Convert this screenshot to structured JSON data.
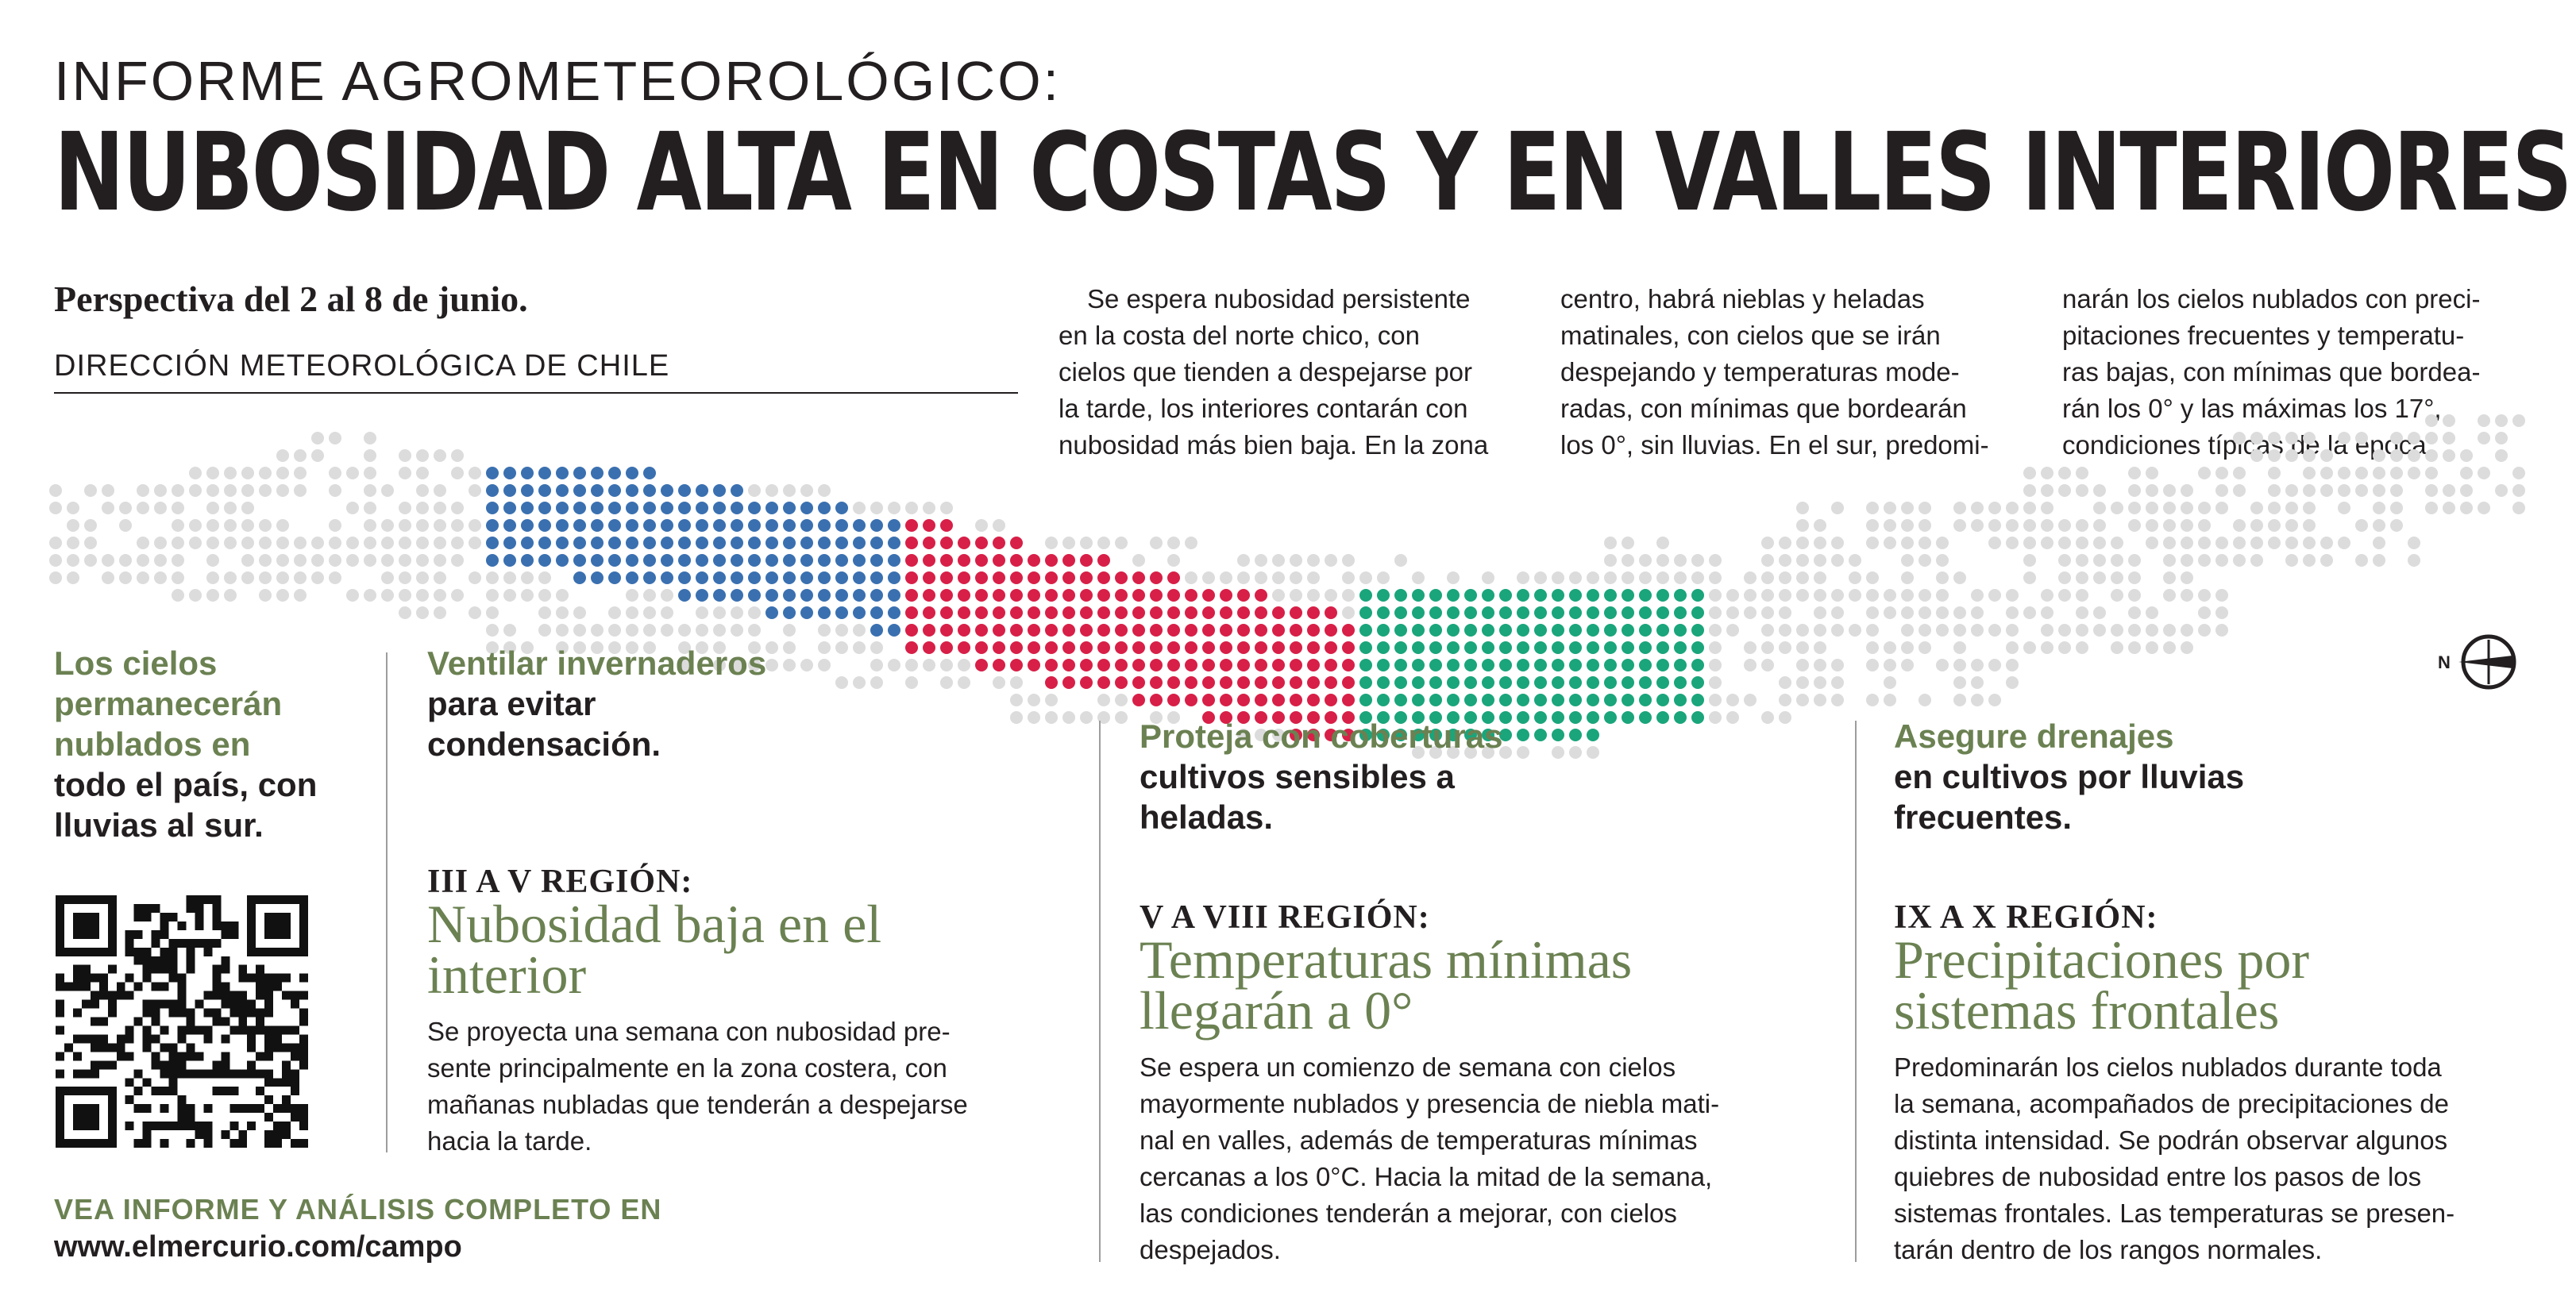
{
  "header": {
    "kicker": "INFORME AGROMETEOROLÓGICO:",
    "headline": "NUBOSIDAD ALTA EN COSTAS Y EN VALLES INTERIORES",
    "perspective": "Perspectiva del 2 al 8 de junio.",
    "agency": "DIRECCIÓN METEOROLÓGICA DE CHILE"
  },
  "intro": {
    "col1": [
      "Se espera nubosidad persistente",
      "en la costa del norte chico, con",
      "cielos que tienden a despejarse por",
      "la tarde, los interiores contarán con",
      "nubosidad más bien baja. En la zona"
    ],
    "col2": [
      "centro, habrá nieblas y heladas",
      "matinales, con cielos que se irán",
      "despejando y temperaturas mode-",
      "radas, con mínimas que bordearán",
      "los 0°, sin lluvias. En el sur, predomi-"
    ],
    "col3": [
      "narán los cielos nublados con preci-",
      "pitaciones frecuentes y temperatu-",
      "ras bajas, con mínimas que bordea-",
      "rán los 0° y las máximas los 17°,",
      "condiciones típicas de la época."
    ]
  },
  "map": {
    "colors": {
      "base": "#dcdcdc",
      "north": "#3a70b0",
      "center": "#d81f47",
      "south": "#1aa57b"
    },
    "compass_label": "N"
  },
  "summary": {
    "green": [
      "Los cielos",
      "permanecerán",
      "nublados en"
    ],
    "dark": [
      "todo el país, con",
      "lluvias al sur."
    ]
  },
  "regions": [
    {
      "tip_green": [
        "Ventilar invernaderos"
      ],
      "tip_dark": [
        "para evitar",
        "condensación."
      ],
      "region": "III A V REGIÓN:",
      "title": [
        "Nubosidad baja en el",
        "interior"
      ],
      "body": [
        "Se proyecta una semana con nubosidad pre-",
        "sente principalmente en la zona costera, con",
        "mañanas nubladas que tenderán a despejarse",
        "hacia la tarde."
      ]
    },
    {
      "tip_green": [
        "Proteja con coberturas"
      ],
      "tip_dark": [
        "cultivos sensibles a",
        "heladas."
      ],
      "region": "V A VIII REGIÓN:",
      "title": [
        "Temperaturas mínimas",
        "llegarán a 0°"
      ],
      "body": [
        "Se espera un comienzo de semana con cielos",
        "mayormente nublados y presencia de niebla mati-",
        "nal en valles, además de temperaturas mínimas",
        "cercanas a los 0°C. Hacia la mitad de la semana,",
        "las condiciones tenderán a mejorar, con cielos",
        "despejados."
      ]
    },
    {
      "tip_green": [
        "Asegure drenajes"
      ],
      "tip_dark": [
        "en cultivos por lluvias",
        "frecuentes."
      ],
      "region": "IX A X REGIÓN:",
      "title": [
        "Precipitaciones por",
        "sistemas frontales"
      ],
      "body": [
        "Predominarán los cielos nublados durante toda",
        "la semana, acompañados de precipitaciones de",
        "distinta intensidad. Se podrán observar algunos",
        "quiebres de nubosidad entre los pasos de los",
        "sistemas frontales. Las temperaturas se presen-",
        "tarán dentro de los rangos normales."
      ]
    }
  ],
  "footer": {
    "cta": "VEA INFORME Y ANÁLISIS COMPLETO EN",
    "url": "www.elmercurio.com/campo"
  }
}
